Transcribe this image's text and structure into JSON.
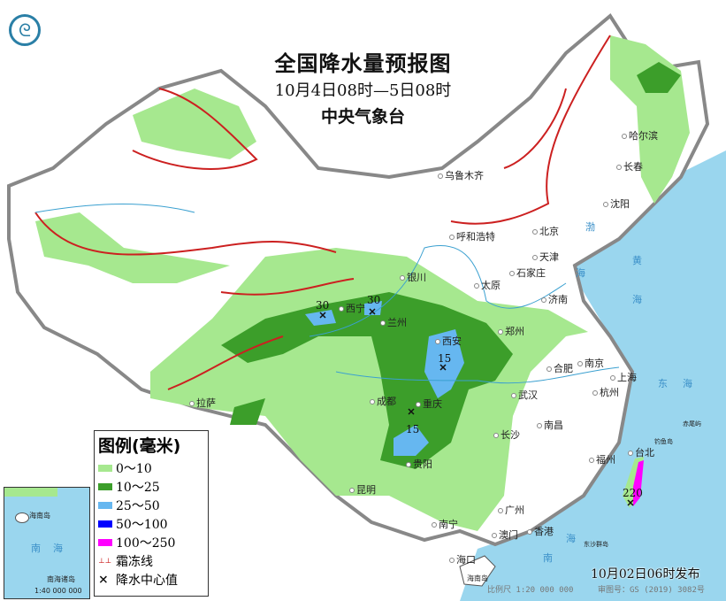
{
  "header": {
    "title": "全国降水量预报图",
    "period": "10月4日08时—5日08时",
    "agency": "中央气象台"
  },
  "logo": {
    "icon": "cma-logo-icon"
  },
  "legend": {
    "title": "图例(毫米)",
    "items": [
      {
        "label": "0～10",
        "color": "#a6e88f"
      },
      {
        "label": "10～25",
        "color": "#3c9e2a"
      },
      {
        "label": "25～50",
        "color": "#66b7f0"
      },
      {
        "label": "50～100",
        "color": "#0000ff"
      },
      {
        "label": "100～250",
        "color": "#ff00ff"
      },
      {
        "label": "霜冻线",
        "color": "#cc2020",
        "icon": "frost-line-icon"
      },
      {
        "label": "降水中心值",
        "color": "#111111",
        "icon": "cross-icon"
      }
    ]
  },
  "cities": [
    "乌鲁木齐",
    "拉萨",
    "西宁",
    "兰州",
    "银川",
    "成都",
    "重庆",
    "贵阳",
    "昆明",
    "南宁",
    "海口",
    "广州",
    "澳门",
    "香港",
    "长沙",
    "武汉",
    "南昌",
    "福州",
    "台北",
    "杭州",
    "上海",
    "南京",
    "合肥",
    "郑州",
    "西安",
    "济南",
    "太原",
    "石家庄",
    "天津",
    "北京",
    "呼和浩特",
    "沈阳",
    "长春",
    "哈尔滨"
  ],
  "islands": [
    "海南岛",
    "东沙群岛",
    "钓鱼岛",
    "赤尾屿"
  ],
  "seas": [
    "渤",
    "海",
    "黄",
    "海",
    "东",
    "海",
    "南",
    "海"
  ],
  "precip_centers": [
    {
      "value": "30",
      "location": "西宁"
    },
    {
      "value": "30",
      "location": "兰州"
    },
    {
      "value": "15",
      "location": "西安"
    },
    {
      "value": "15",
      "location": "贵阳"
    },
    {
      "value": "220",
      "location": "台湾"
    }
  ],
  "inset": {
    "sea": [
      "南",
      "海"
    ],
    "island_label": "海南岛",
    "islands": "南海诸岛",
    "scale": "1:40 000 000"
  },
  "footer": {
    "issued": "10月02日06时发布",
    "scale": "比例尺 1:20 000 000",
    "approval": "审图号：GS (2019) 3082号"
  }
}
